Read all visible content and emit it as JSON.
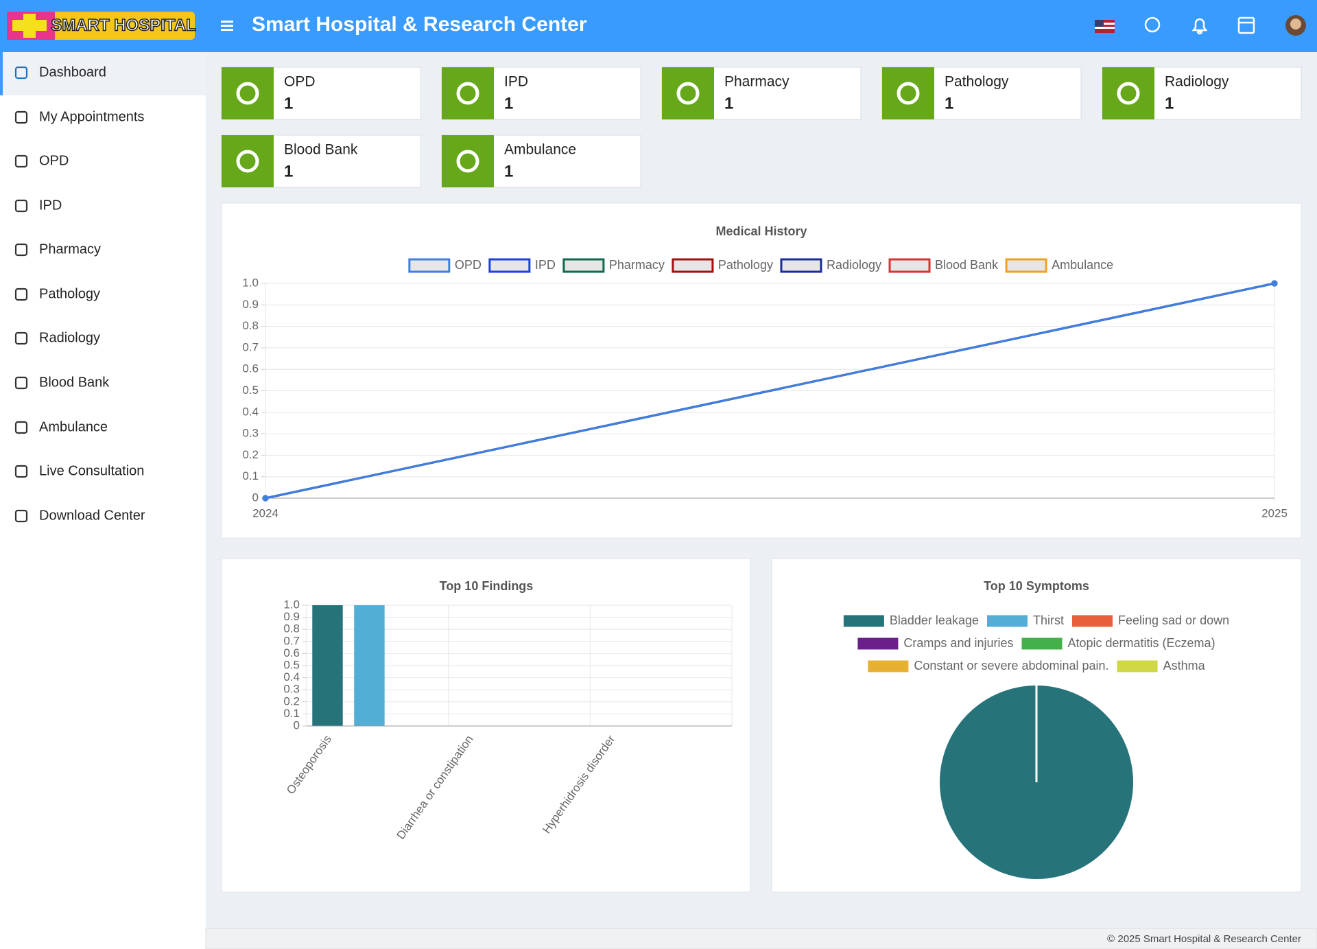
{
  "header": {
    "logo": "SMART HOSPITAL",
    "title": "Smart Hospital & Research Center"
  },
  "sidebar": {
    "items": [
      "Dashboard",
      "My Appointments",
      "OPD",
      "IPD",
      "Pharmacy",
      "Pathology",
      "Radiology",
      "Blood Bank",
      "Ambulance",
      "Live Consultation",
      "Download Center"
    ]
  },
  "cards": [
    {
      "label": "OPD",
      "value": 1
    },
    {
      "label": "IPD",
      "value": 1
    },
    {
      "label": "Pharmacy",
      "value": 1
    },
    {
      "label": "Pathology",
      "value": 1
    },
    {
      "label": "Radiology",
      "value": 1
    },
    {
      "label": "Blood Bank",
      "value": 1
    },
    {
      "label": "Ambulance",
      "value": 1
    }
  ],
  "chart_data": [
    {
      "type": "line",
      "title": "Medical History",
      "categories": [
        "2024",
        "2025"
      ],
      "series": [
        {
          "name": "OPD",
          "color": "#3f7fe0",
          "values": [
            0,
            1
          ]
        },
        {
          "name": "IPD",
          "color": "#1c3fe0",
          "values": [
            0,
            1
          ]
        },
        {
          "name": "Pharmacy",
          "color": "#0b6b4b",
          "values": [
            0,
            1
          ]
        },
        {
          "name": "Pathology",
          "color": "#a30f0f",
          "values": [
            0,
            1
          ]
        },
        {
          "name": "Radiology",
          "color": "#1a2c99",
          "values": [
            0,
            1
          ]
        },
        {
          "name": "Blood Bank",
          "color": "#d63333",
          "values": [
            0,
            1
          ]
        },
        {
          "name": "Ambulance",
          "color": "#f0a020",
          "values": [
            0,
            1
          ]
        }
      ],
      "ylim": [
        0,
        1
      ],
      "yticks": [
        0,
        0.1,
        0.2,
        0.3,
        0.4,
        0.5,
        0.6,
        0.7,
        0.8,
        0.9,
        {
          "value": 1,
          "label": "1.0"
        }
      ],
      "grid": true
    },
    {
      "type": "bar",
      "title": "Top 10 Findings",
      "categories": [
        "Osteoporosis",
        "Diarrhea or constipation",
        "Hyperhidrosis disorder"
      ],
      "series": [
        {
          "color": "#26737a",
          "values": [
            1,
            0,
            0
          ]
        },
        {
          "color": "#53aed6",
          "values": [
            1,
            0,
            0
          ]
        }
      ],
      "ylim": [
        0,
        1
      ],
      "yticks": [
        0,
        0.1,
        0.2,
        0.3,
        0.4,
        0.5,
        0.6,
        0.7,
        0.8,
        0.9,
        {
          "value": 1,
          "label": "1.0"
        }
      ],
      "grid": true
    },
    {
      "type": "pie",
      "title": "Top 10 Symptoms",
      "categories": [
        "Bladder leakage",
        "Thirst",
        "Feeling sad or down",
        "Cramps and injuries",
        "Atopic dermatitis (Eczema)",
        "Constant or severe abdominal pain.",
        "Asthma"
      ],
      "values": [
        1,
        0,
        0,
        0,
        0,
        0,
        0
      ],
      "colors": [
        "#26737a",
        "#53aed6",
        "#e8603a",
        "#6a1f8a",
        "#43b04a",
        "#e8b030",
        "#cfd845"
      ]
    }
  ],
  "footer": "© 2025 Smart Hospital & Research Center"
}
